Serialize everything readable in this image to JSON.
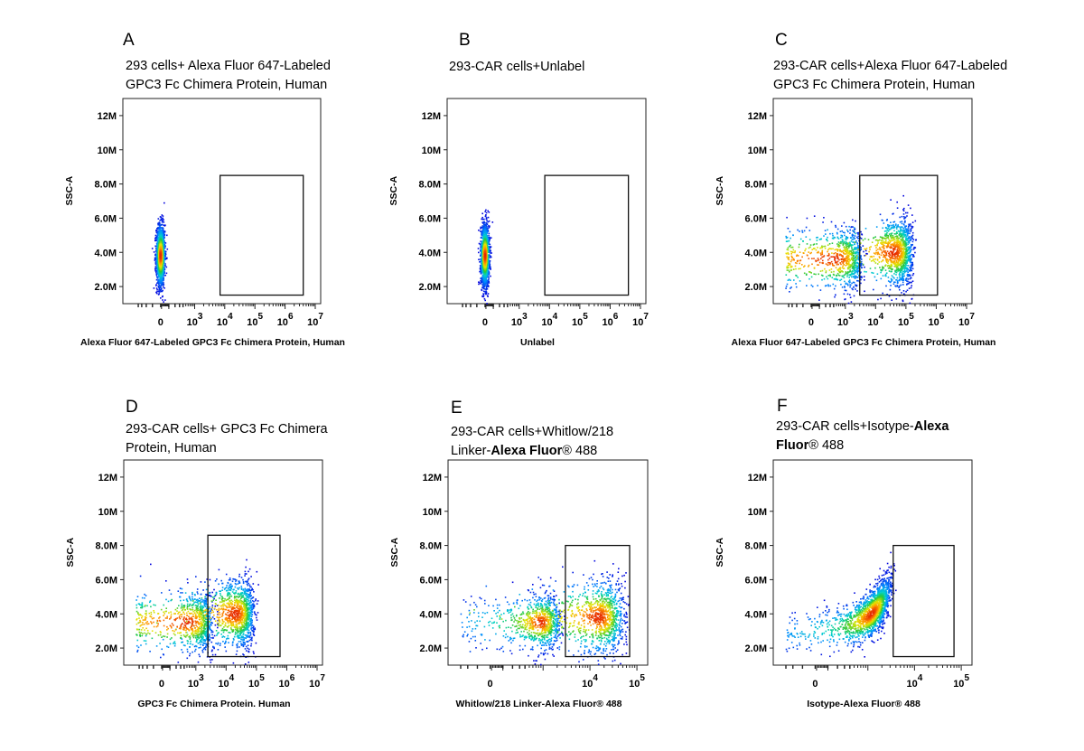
{
  "chart_data": [
    {
      "id": "A",
      "letter": "A",
      "type": "scatter",
      "title_lines": [
        [
          {
            "text": "293 cells+ Alexa Fluor 647-Labeled"
          }
        ],
        [
          {
            "text": "GPC3 Fc Chimera Protein, Human"
          }
        ]
      ],
      "xlabel": "Alexa Fluor 647-Labeled GPC3 Fc Chimera Protein, Human",
      "ylabel": "SSC-A",
      "yticks": [
        2000000,
        4000000,
        6000000,
        8000000,
        10000000,
        12000000
      ],
      "ytick_labels": [
        "2.0M",
        "4.0M",
        "6.0M",
        "8.0M",
        "10M",
        "12M"
      ],
      "ylim": [
        1000000,
        13000000
      ],
      "x_scale": "biexponential",
      "xlim": [
        -500,
        10000000
      ],
      "xticks": [
        0,
        1000,
        10000,
        100000,
        1000000,
        10000000
      ],
      "xtick_exponents": [
        "",
        "3",
        "4",
        "5",
        "6",
        "7"
      ],
      "gate": {
        "x0": 7000,
        "x1": 4000000,
        "y0": 1500000,
        "y1": 8500000
      },
      "populations": [
        {
          "x_center": 0,
          "x_spread": 25,
          "y_center": 3800000,
          "y_spread": 900000,
          "count": 1500
        }
      ]
    },
    {
      "id": "B",
      "letter": "B",
      "type": "scatter",
      "title_lines": [
        [
          {
            "text": "293-CAR cells+Unlabel"
          }
        ]
      ],
      "xlabel": "Unlabel",
      "ylabel": "SSC-A",
      "yticks": [
        2000000,
        4000000,
        6000000,
        8000000,
        10000000,
        12000000
      ],
      "ytick_labels": [
        "2.0M",
        "4.0M",
        "6.0M",
        "8.0M",
        "10M",
        "12M"
      ],
      "ylim": [
        1000000,
        13000000
      ],
      "x_scale": "biexponential",
      "xlim": [
        -500,
        10000000
      ],
      "xticks": [
        0,
        1000,
        10000,
        100000,
        1000000,
        10000000
      ],
      "xtick_exponents": [
        "",
        "3",
        "4",
        "5",
        "6",
        "7"
      ],
      "gate": {
        "x0": 7000,
        "x1": 4000000,
        "y0": 1500000,
        "y1": 8500000
      },
      "populations": [
        {
          "x_center": 0,
          "x_spread": 25,
          "y_center": 3800000,
          "y_spread": 900000,
          "count": 1500
        }
      ]
    },
    {
      "id": "C",
      "letter": "C",
      "type": "scatter",
      "title_lines": [
        [
          {
            "text": "293-CAR cells+Alexa Fluor 647-Labeled"
          }
        ],
        [
          {
            "text": "GPC3 Fc Chimera Protein, Human"
          }
        ]
      ],
      "xlabel": "Alexa Fluor 647-Labeled GPC3 Fc Chimera Protein, Human",
      "ylabel": "SSC-A",
      "yticks": [
        2000000,
        4000000,
        6000000,
        8000000,
        10000000,
        12000000
      ],
      "ytick_labels": [
        "2.0M",
        "4.0M",
        "6.0M",
        "8.0M",
        "10M",
        "12M"
      ],
      "ylim": [
        1000000,
        13000000
      ],
      "x_scale": "biexponential",
      "xlim": [
        -500,
        10000000
      ],
      "xticks": [
        0,
        1000,
        10000,
        100000,
        1000000,
        10000000
      ],
      "xtick_exponents": [
        "",
        "3",
        "4",
        "5",
        "6",
        "7"
      ],
      "gate": {
        "x0": 3000,
        "x1": 1100000,
        "y0": 1500000,
        "y1": 8500000
      },
      "populations": [
        {
          "x_center": 400,
          "x_spread": 1500,
          "y_center": 3600000,
          "y_spread": 900000,
          "count": 1200
        },
        {
          "x_center": 40000,
          "x_spread": 60000,
          "y_center": 4000000,
          "y_spread": 1000000,
          "count": 1500
        }
      ]
    },
    {
      "id": "D",
      "letter": "D",
      "type": "scatter",
      "title_lines": [
        [
          {
            "text": "293-CAR cells+ GPC3 Fc Chimera"
          }
        ],
        [
          {
            "text": "Protein, Human"
          }
        ]
      ],
      "xlabel": "GPC3 Fc Chimera Protein. Human",
      "ylabel": "SSC-A",
      "yticks": [
        2000000,
        4000000,
        6000000,
        8000000,
        10000000,
        12000000
      ],
      "ytick_labels": [
        "2.0M",
        "4.0M",
        "6.0M",
        "8.0M",
        "10M",
        "12M"
      ],
      "ylim": [
        1000000,
        13000000
      ],
      "x_scale": "biexponential",
      "xlim": [
        -500,
        10000000
      ],
      "xticks": [
        0,
        1000,
        10000,
        100000,
        1000000,
        10000000
      ],
      "xtick_exponents": [
        "",
        "3",
        "4",
        "5",
        "6",
        "7"
      ],
      "gate": {
        "x0": 2500,
        "x1": 600000,
        "y0": 1500000,
        "y1": 8600000
      },
      "populations": [
        {
          "x_center": 500,
          "x_spread": 1500,
          "y_center": 3500000,
          "y_spread": 900000,
          "count": 1200
        },
        {
          "x_center": 20000,
          "x_spread": 30000,
          "y_center": 4000000,
          "y_spread": 1000000,
          "count": 1500
        }
      ]
    },
    {
      "id": "E",
      "letter": "E",
      "type": "scatter",
      "title_lines": [
        [
          {
            "text": "293-CAR  cells+Whitlow/218"
          }
        ],
        [
          {
            "text": "Linker-"
          },
          {
            "text": "Alexa Fluor",
            "bold": true
          },
          {
            "text": "® 488"
          }
        ]
      ],
      "xlabel": "Whitlow/218 Linker-Alexa Fluor® 488",
      "ylabel": "SSC-A",
      "yticks": [
        2000000,
        4000000,
        6000000,
        8000000,
        10000000,
        12000000
      ],
      "ytick_labels": [
        "2.0M",
        "4.0M",
        "6.0M",
        "8.0M",
        "10M",
        "12M"
      ],
      "ylim": [
        1000000,
        13000000
      ],
      "x_scale": "biexponential",
      "xlim": [
        -300,
        130000
      ],
      "xticks": [
        0,
        10000,
        100000
      ],
      "xtick_exponents": [
        "",
        "4",
        "5"
      ],
      "gate": {
        "x0": 3000,
        "x1": 70000,
        "y0": 1500000,
        "y1": 8000000
      },
      "populations": [
        {
          "x_center": 900,
          "x_spread": 700,
          "y_center": 3500000,
          "y_spread": 800000,
          "count": 900
        },
        {
          "x_center": 15000,
          "x_spread": 18000,
          "y_center": 3800000,
          "y_spread": 1100000,
          "count": 1300
        }
      ]
    },
    {
      "id": "F",
      "letter": "F",
      "type": "scatter",
      "title_lines": [
        [
          {
            "text": "293-CAR  cells+Isotype-"
          },
          {
            "text": "Alexa",
            "bold": true
          }
        ],
        [
          {
            "text": "Fluor",
            "bold": true
          },
          {
            "text": "® 488"
          }
        ]
      ],
      "xlabel": "Isotype-Alexa Fluor® 488",
      "ylabel": "SSC-A",
      "yticks": [
        2000000,
        4000000,
        6000000,
        8000000,
        10000000,
        12000000
      ],
      "ytick_labels": [
        "2.0M",
        "4.0M",
        "6.0M",
        "8.0M",
        "10M",
        "12M"
      ],
      "ylim": [
        1000000,
        13000000
      ],
      "x_scale": "biexponential",
      "xlim": [
        -300,
        130000
      ],
      "xticks": [
        0,
        10000,
        100000
      ],
      "xtick_exponents": [
        "",
        "4",
        "5"
      ],
      "gate": {
        "x0": 3500,
        "x1": 70000,
        "y0": 1500000,
        "y1": 8000000
      },
      "populations": [
        {
          "x_center": 1200,
          "x_spread": 900,
          "y_center": 4000000,
          "y_spread": 1000000,
          "count": 1800,
          "correlated": true
        }
      ]
    }
  ]
}
